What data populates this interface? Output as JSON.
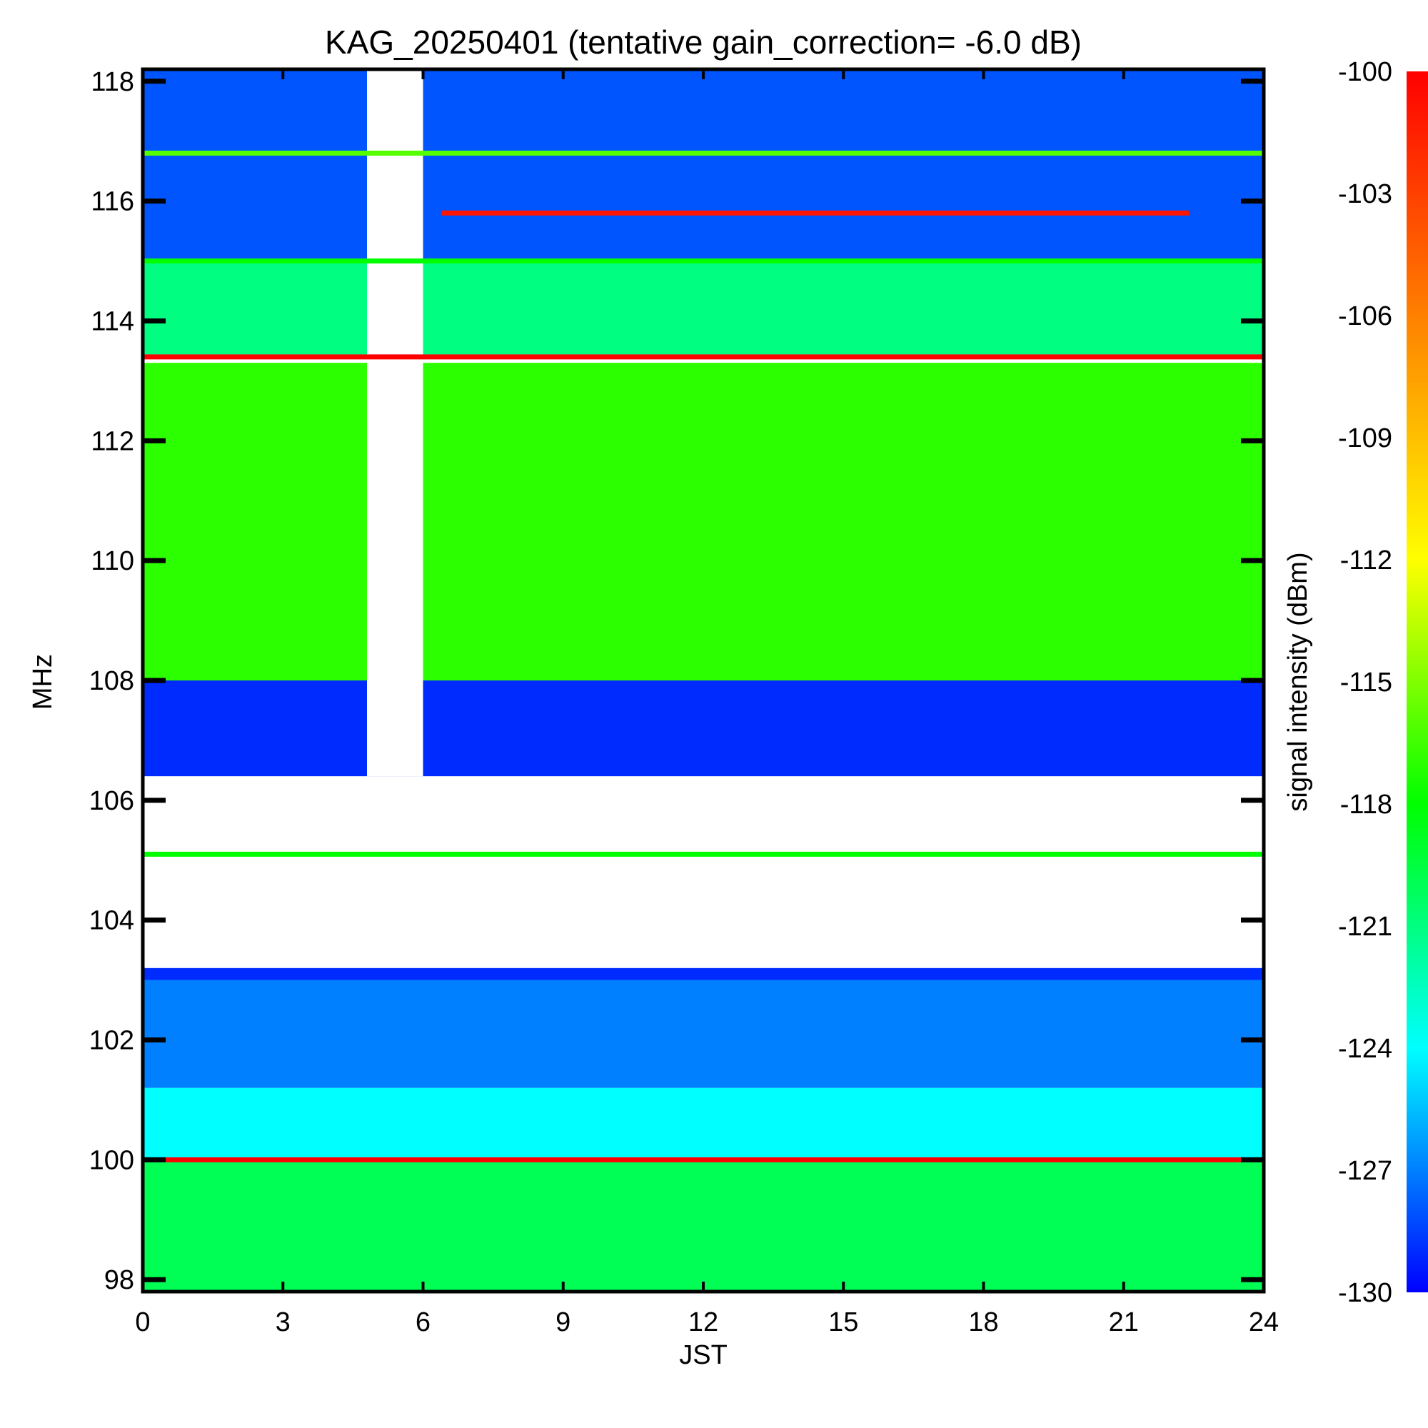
{
  "chart_data": {
    "type": "heatmap",
    "title": "KAG_20250401 (tentative gain_correction= -6.0 dB)",
    "xlabel": "JST",
    "ylabel": "MHz",
    "colorbar_label": "signal intensity (dBm)",
    "xlim": [
      0,
      24
    ],
    "ylim": [
      97.8,
      118.2
    ],
    "xticks": [
      "0",
      "3",
      "6",
      "9",
      "12",
      "15",
      "18",
      "21",
      "24"
    ],
    "yticks": [
      "98",
      "100",
      "102",
      "104",
      "106",
      "108",
      "110",
      "112",
      "114",
      "116",
      "118"
    ],
    "colorbar_range": [
      -130,
      -100
    ],
    "colorbar_ticks": [
      "-100",
      "-103",
      "-106",
      "-109",
      "-112",
      "-115",
      "-118",
      "-121",
      "-124",
      "-127",
      "-130"
    ],
    "colormap": [
      "#0000ff",
      "#00ffff",
      "#00ff00",
      "#ffff00",
      "#ff8000",
      "#ff0000"
    ],
    "grid": false,
    "regions": [
      {
        "name": "band-98-100",
        "t": [
          0,
          24
        ],
        "f": [
          97.8,
          100.0
        ],
        "dbm": -120
      },
      {
        "name": "band-100-101",
        "t": [
          0,
          24
        ],
        "f": [
          100.0,
          101.2
        ],
        "dbm": -124
      },
      {
        "name": "band-101-103",
        "t": [
          0,
          24
        ],
        "f": [
          101.2,
          103.0
        ],
        "dbm": -127
      },
      {
        "name": "band-103-104",
        "t": [
          0,
          24
        ],
        "f": [
          103.0,
          103.2
        ],
        "dbm": -129
      },
      {
        "name": "band-106-108",
        "t": [
          0,
          24
        ],
        "f": [
          106.4,
          108.0
        ],
        "dbm": -129
      },
      {
        "name": "band-108-113",
        "t": [
          0,
          24
        ],
        "f": [
          108.0,
          113.3
        ],
        "dbm": -117
      },
      {
        "name": "band-113-115",
        "t": [
          0,
          24
        ],
        "f": [
          113.4,
          115.0
        ],
        "dbm": -121
      },
      {
        "name": "band-115-118",
        "t": [
          0,
          24
        ],
        "f": [
          115.0,
          118.2
        ],
        "dbm": -128
      }
    ],
    "gaps": [
      {
        "name": "gap-104-106",
        "t": [
          0,
          24
        ],
        "f": [
          103.3,
          106.4
        ]
      },
      {
        "name": "gap-dropout",
        "t": [
          4.8,
          6.0
        ],
        "f": [
          106.4,
          118.2
        ]
      }
    ],
    "lines": [
      {
        "freq": 100.0,
        "t": [
          0,
          24
        ],
        "dbm": -100
      },
      {
        "freq": 105.1,
        "t": [
          0,
          24
        ],
        "dbm": -118
      },
      {
        "freq": 113.4,
        "t": [
          0,
          24
        ],
        "dbm": -100
      },
      {
        "freq": 115.0,
        "t": [
          0,
          24
        ],
        "dbm": -118
      },
      {
        "freq": 115.8,
        "t": [
          6.4,
          22.4
        ],
        "dbm": -101
      },
      {
        "freq": 116.8,
        "t": [
          0,
          24
        ],
        "dbm": -116
      }
    ]
  }
}
